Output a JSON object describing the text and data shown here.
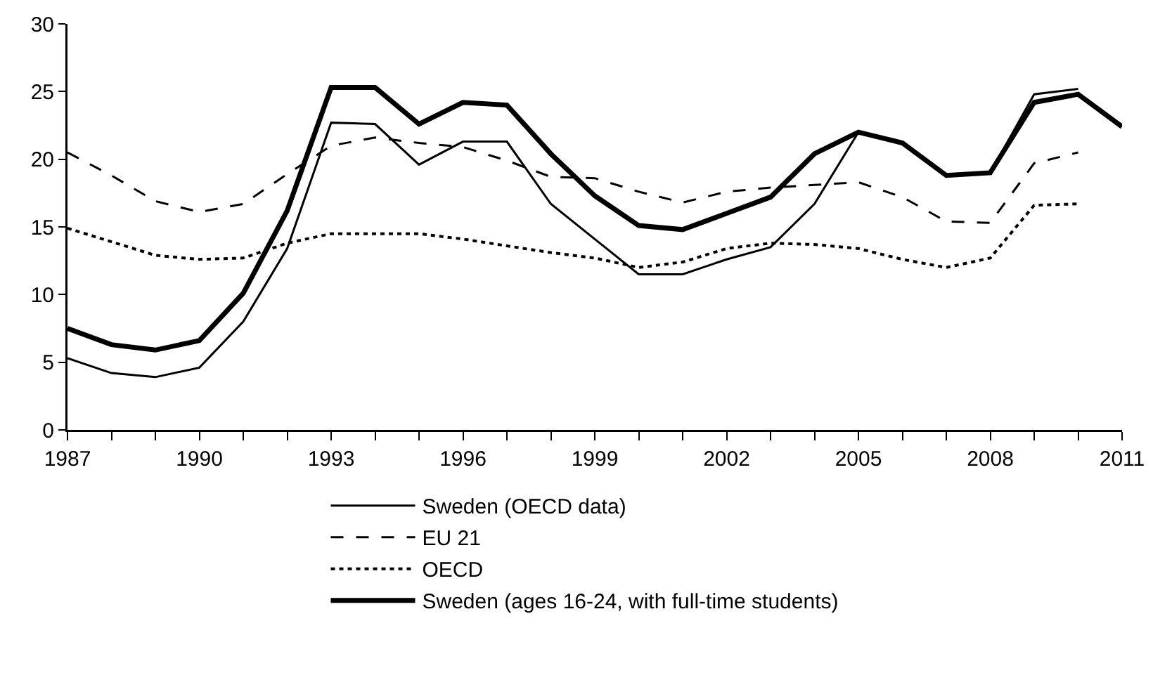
{
  "chart_data": {
    "type": "line",
    "x": [
      1987,
      1988,
      1989,
      1990,
      1991,
      1992,
      1993,
      1994,
      1995,
      1996,
      1997,
      1998,
      1999,
      2000,
      2001,
      2002,
      2003,
      2004,
      2005,
      2006,
      2007,
      2008,
      2009,
      2010,
      2011
    ],
    "series": [
      {
        "name": "Sweden (OECD data)",
        "color": "#000000",
        "line_style": "solid",
        "values": [
          5.3,
          4.2,
          3.9,
          4.6,
          8.0,
          13.4,
          22.7,
          22.6,
          19.6,
          21.3,
          21.3,
          16.7,
          14.1,
          11.5,
          11.5,
          12.6,
          13.5,
          16.7,
          22.0,
          21.2,
          18.8,
          19.0,
          24.8,
          25.2,
          null
        ]
      },
      {
        "name": "EU 21",
        "color": "#000000",
        "line_style": "dashed",
        "values": [
          20.5,
          18.8,
          16.9,
          16.1,
          16.7,
          18.9,
          21.0,
          21.6,
          21.2,
          20.9,
          19.9,
          18.7,
          18.6,
          17.6,
          16.8,
          17.6,
          17.9,
          18.1,
          18.3,
          17.2,
          15.4,
          15.3,
          19.7,
          20.5,
          null
        ]
      },
      {
        "name": "OECD",
        "color": "#000000",
        "line_style": "dotted",
        "values": [
          14.9,
          13.9,
          12.9,
          12.6,
          12.7,
          13.8,
          14.5,
          14.5,
          14.5,
          14.1,
          13.6,
          13.1,
          12.7,
          12.0,
          12.4,
          13.4,
          13.8,
          13.7,
          13.4,
          12.6,
          12.0,
          12.7,
          16.6,
          16.7,
          null
        ]
      },
      {
        "name": "Sweden (ages 16-24, with full-time students)",
        "color": "#000000",
        "line_style": "solid",
        "values": [
          7.5,
          6.3,
          5.9,
          6.6,
          10.1,
          16.2,
          25.3,
          25.3,
          22.6,
          24.2,
          24.0,
          20.4,
          17.3,
          15.1,
          14.8,
          16.0,
          17.2,
          20.4,
          22.0,
          21.2,
          18.8,
          19.0,
          24.2,
          24.8,
          22.4
        ]
      }
    ],
    "xlim": [
      1987,
      2011
    ],
    "xticks": [
      1987,
      {
        "value": 1988,
        "label": null
      },
      {
        "value": 1989,
        "label": null
      },
      1990,
      {
        "value": 1991,
        "label": null
      },
      {
        "value": 1992,
        "label": null
      },
      1993,
      {
        "value": 1994,
        "label": null
      },
      {
        "value": 1995,
        "label": null
      },
      1996,
      {
        "value": 1997,
        "label": null
      },
      {
        "value": 1998,
        "label": null
      },
      1999,
      {
        "value": 2000,
        "label": null
      },
      {
        "value": 2001,
        "label": null
      },
      2002,
      {
        "value": 2003,
        "label": null
      },
      {
        "value": 2004,
        "label": null
      },
      2005,
      {
        "value": 2006,
        "label": null
      },
      {
        "value": 2007,
        "label": null
      },
      2008,
      {
        "value": 2009,
        "label": null
      },
      {
        "value": 2010,
        "label": null
      },
      2011
    ],
    "ylim": [
      0,
      30
    ],
    "yticks": [
      0,
      5,
      10,
      15,
      20,
      25,
      30
    ],
    "grid": false,
    "legend": "bottom",
    "marker": "none"
  }
}
